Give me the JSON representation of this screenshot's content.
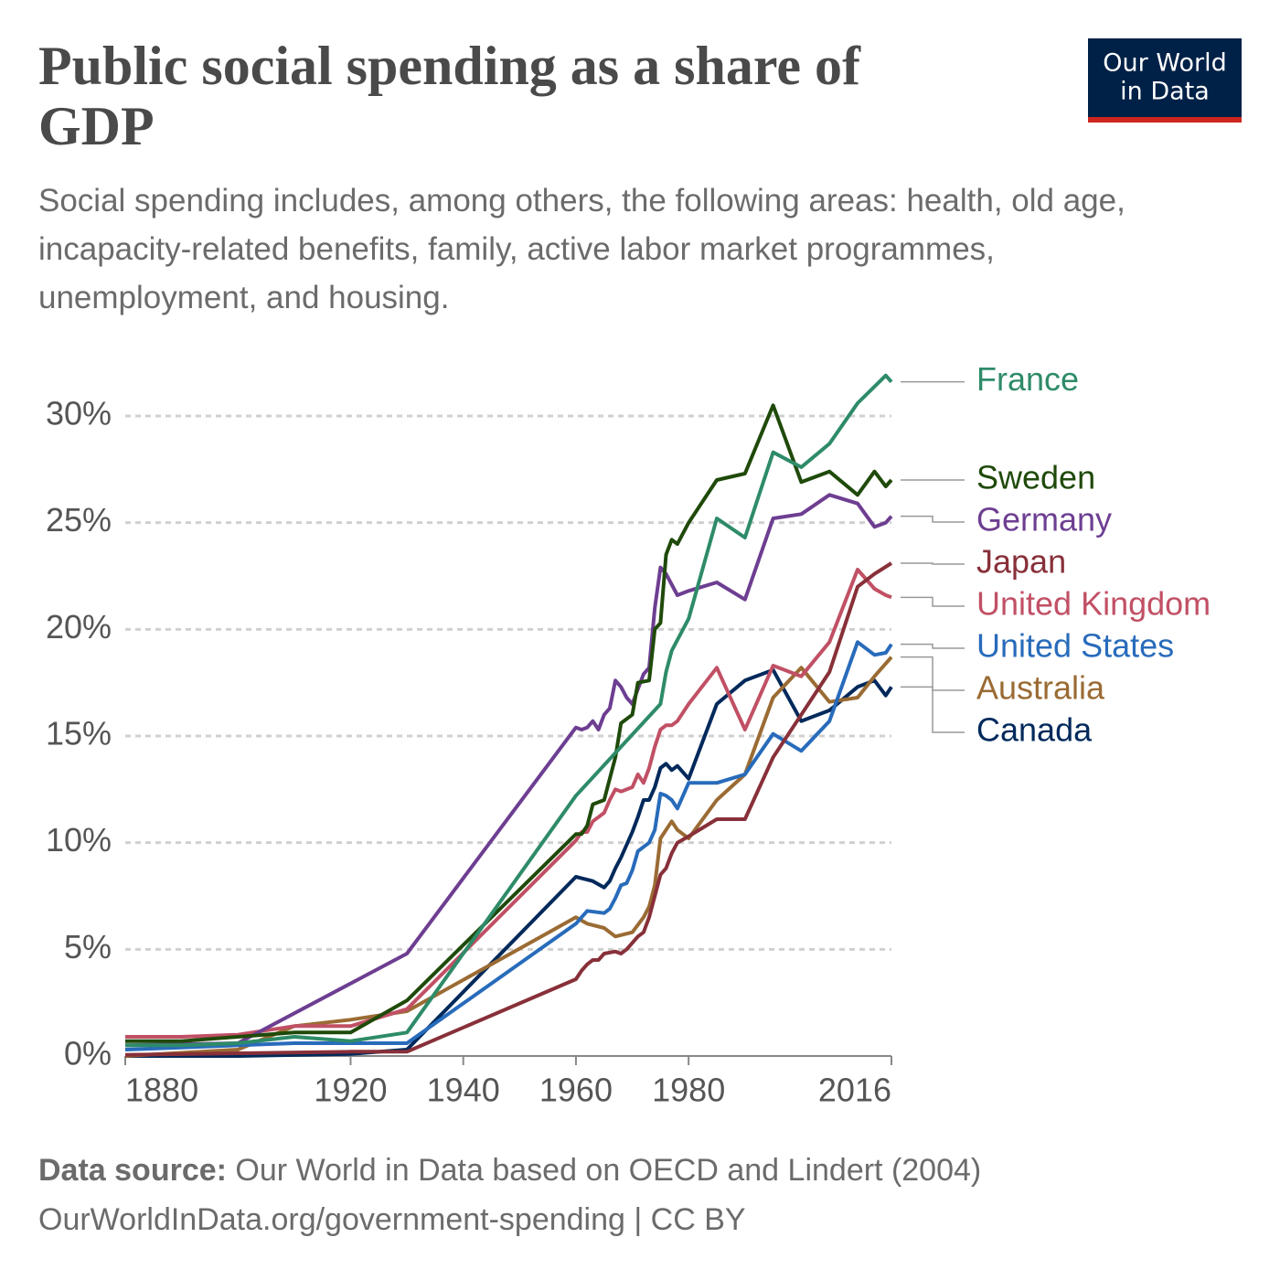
{
  "chart_data": {
    "type": "line",
    "title": "Public social spending as a share of GDP",
    "subtitle": "Social spending includes, among others, the following areas: health, old age, incapacity-related benefits, family, active labor market programmes, unemployment, and housing.",
    "logo": [
      "Our World",
      "in Data"
    ],
    "source_label": "Data source:",
    "source_text": "Our World in Data based on OECD and Lindert (2004)",
    "footer": "OurWorldInData.org/government-spending | CC BY",
    "xlim": [
      1880,
      2016
    ],
    "xticks": [
      1880,
      1920,
      1940,
      1960,
      1980,
      2016
    ],
    "ylim": [
      0,
      32
    ],
    "yticks": [
      {
        "value": 0,
        "label": "0%"
      },
      {
        "value": 5,
        "label": "5%"
      },
      {
        "value": 10,
        "label": "10%"
      },
      {
        "value": 15,
        "label": "15%"
      },
      {
        "value": 20,
        "label": "20%"
      },
      {
        "value": 25,
        "label": "25%"
      },
      {
        "value": 30,
        "label": "30%"
      }
    ],
    "grid": true,
    "series": [
      {
        "name": "France",
        "color": "#2e8b68",
        "x": [
          1880,
          1890,
          1900,
          1910,
          1920,
          1930,
          1960,
          1975,
          1976,
          1977,
          1980,
          1985,
          1990,
          1995,
          2000,
          2005,
          2010,
          2015,
          2016
        ],
        "values": [
          0.5,
          0.5,
          0.6,
          0.9,
          0.7,
          1.1,
          12.2,
          16.5,
          18,
          19,
          20.5,
          25.2,
          24.3,
          28.3,
          27.6,
          28.7,
          30.6,
          31.9,
          31.6
        ]
      },
      {
        "name": "Sweden",
        "color": "#1f4a0a",
        "x": [
          1880,
          1890,
          1900,
          1910,
          1920,
          1930,
          1960,
          1961,
          1962,
          1963,
          1965,
          1966,
          1967,
          1968,
          1970,
          1971,
          1973,
          1974,
          1975,
          1976,
          1977,
          1978,
          1980,
          1985,
          1990,
          1995,
          2000,
          2005,
          2010,
          2013,
          2015,
          2016
        ],
        "values": [
          0.7,
          0.7,
          0.9,
          1.1,
          1.1,
          2.6,
          10.4,
          10.4,
          10.8,
          11.8,
          12,
          13,
          14,
          15.6,
          16,
          17.5,
          17.6,
          20,
          20.3,
          23.5,
          24.2,
          24,
          25,
          27,
          27.3,
          30.5,
          26.9,
          27.4,
          26.3,
          27.4,
          26.7,
          27
        ]
      },
      {
        "name": "Germany",
        "color": "#6d3e91",
        "x": [
          1880,
          1900,
          1930,
          1960,
          1961,
          1962,
          1963,
          1964,
          1965,
          1966,
          1967,
          1968,
          1969,
          1970,
          1971,
          1972,
          1973,
          1974,
          1975,
          1976,
          1978,
          1980,
          1985,
          1990,
          1995,
          2000,
          2005,
          2010,
          2013,
          2015,
          2016
        ],
        "values": [
          0.5,
          0.6,
          4.8,
          15.4,
          15.3,
          15.4,
          15.7,
          15.3,
          16,
          16.3,
          17.6,
          17.3,
          16.8,
          16.5,
          17.2,
          17.9,
          18.2,
          21,
          22.9,
          22.6,
          21.6,
          21.8,
          22.2,
          21.4,
          25.2,
          25.4,
          26.3,
          25.9,
          24.8,
          25,
          25.3
        ]
      },
      {
        "name": "Japan",
        "color": "#883039",
        "x": [
          1880,
          1920,
          1930,
          1960,
          1961,
          1962,
          1963,
          1964,
          1965,
          1967,
          1968,
          1969,
          1970,
          1971,
          1972,
          1973,
          1974,
          1975,
          1976,
          1977,
          1978,
          1980,
          1985,
          1990,
          1995,
          2000,
          2005,
          2010,
          2013,
          2016
        ],
        "values": [
          0.05,
          0.2,
          0.2,
          3.6,
          4,
          4.3,
          4.5,
          4.5,
          4.8,
          4.9,
          4.8,
          5,
          5.3,
          5.6,
          5.8,
          6.5,
          7.5,
          8.5,
          8.8,
          9.5,
          10,
          10.3,
          11.1,
          11.1,
          14,
          16,
          18,
          22,
          22.6,
          23.1
        ]
      },
      {
        "name": "United Kingdom",
        "color": "#c15065",
        "x": [
          1880,
          1890,
          1900,
          1910,
          1920,
          1930,
          1960,
          1961,
          1962,
          1963,
          1965,
          1966,
          1967,
          1968,
          1970,
          1971,
          1972,
          1973,
          1974,
          1975,
          1976,
          1977,
          1978,
          1980,
          1985,
          1990,
          1995,
          2000,
          2005,
          2010,
          2013,
          2015,
          2016
        ],
        "values": [
          0.9,
          0.9,
          1,
          1.4,
          1.4,
          2.2,
          10.1,
          10.5,
          10.5,
          11,
          11.4,
          12,
          12.5,
          12.4,
          12.6,
          13.2,
          12.8,
          13.5,
          14.5,
          15.3,
          15.5,
          15.5,
          15.7,
          16.5,
          18.2,
          15.3,
          18.3,
          17.8,
          19.4,
          22.8,
          21.9,
          21.6,
          21.5
        ]
      },
      {
        "name": "United States",
        "color": "#286bbb",
        "x": [
          1880,
          1890,
          1900,
          1910,
          1920,
          1930,
          1960,
          1962,
          1965,
          1966,
          1967,
          1968,
          1969,
          1970,
          1971,
          1972,
          1973,
          1974,
          1975,
          1976,
          1977,
          1978,
          1980,
          1985,
          1990,
          1995,
          2000,
          2005,
          2010,
          2013,
          2015,
          2016
        ],
        "values": [
          0.3,
          0.4,
          0.5,
          0.6,
          0.6,
          0.6,
          6.2,
          6.8,
          6.7,
          6.9,
          7.4,
          8,
          8.1,
          8.7,
          9.6,
          9.8,
          10,
          10.6,
          12.3,
          12.2,
          12,
          11.6,
          12.8,
          12.8,
          13.2,
          15.1,
          14.3,
          15.7,
          19.4,
          18.8,
          18.9,
          19.3
        ]
      },
      {
        "name": "Australia",
        "color": "#9a6b33",
        "x": [
          1880,
          1900,
          1910,
          1920,
          1930,
          1960,
          1962,
          1965,
          1967,
          1970,
          1972,
          1973,
          1974,
          1975,
          1976,
          1977,
          1978,
          1980,
          1985,
          1990,
          1995,
          2000,
          2005,
          2010,
          2013,
          2016
        ],
        "values": [
          0,
          0.3,
          1.4,
          1.7,
          2.1,
          6.5,
          6.2,
          6,
          5.6,
          5.8,
          6.5,
          7,
          8,
          10.2,
          10.6,
          11,
          10.6,
          10.2,
          12,
          13.2,
          16.8,
          18.2,
          16.6,
          16.8,
          17.8,
          18.7
        ]
      },
      {
        "name": "Canada",
        "color": "#00295b",
        "x": [
          1880,
          1900,
          1920,
          1930,
          1960,
          1963,
          1965,
          1966,
          1967,
          1968,
          1970,
          1971,
          1972,
          1973,
          1974,
          1975,
          1976,
          1977,
          1978,
          1980,
          1985,
          1990,
          1995,
          2000,
          2005,
          2010,
          2013,
          2015,
          2016
        ],
        "values": [
          0,
          0,
          0.1,
          0.3,
          8.4,
          8.2,
          7.9,
          8.2,
          8.8,
          9.3,
          10.5,
          11.2,
          12,
          12,
          12.6,
          13.5,
          13.7,
          13.4,
          13.6,
          13,
          16.5,
          17.6,
          18.1,
          15.7,
          16.2,
          17.3,
          17.6,
          16.9,
          17.3
        ]
      }
    ]
  }
}
